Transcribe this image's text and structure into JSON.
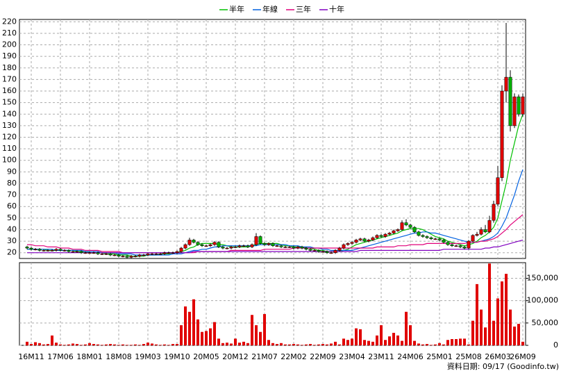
{
  "chart_data": {
    "type": "candlestick",
    "categories": [
      null,
      "16M11",
      null,
      null,
      null,
      null,
      null,
      null,
      "17M06",
      null,
      null,
      null,
      null,
      null,
      null,
      "18M01",
      null,
      null,
      null,
      null,
      null,
      null,
      "18M08",
      null,
      null,
      null,
      null,
      null,
      null,
      "19M03",
      null,
      null,
      null,
      null,
      null,
      null,
      "19M10",
      null,
      null,
      null,
      null,
      null,
      null,
      "20M05",
      null,
      null,
      null,
      null,
      null,
      null,
      "20M12",
      null,
      null,
      null,
      null,
      null,
      null,
      "21M07",
      null,
      null,
      null,
      null,
      null,
      null,
      "22M02",
      null,
      null,
      null,
      null,
      null,
      null,
      "22M09",
      null,
      null,
      null,
      null,
      null,
      null,
      "23M04",
      null,
      null,
      null,
      null,
      null,
      null,
      "23M11",
      null,
      null,
      null,
      null,
      null,
      null,
      "24M06",
      null,
      null,
      null,
      null,
      null,
      null,
      "25M01",
      null,
      null,
      null,
      null,
      null,
      null,
      "25M08",
      null,
      null,
      null,
      null,
      null,
      null,
      "26M03",
      null,
      null,
      null,
      null,
      null,
      "26M09"
    ],
    "open": [
      25,
      24,
      23,
      23,
      22,
      22,
      22,
      22,
      23,
      22,
      22,
      21,
      21,
      21,
      20,
      20,
      20,
      20,
      19,
      19,
      19,
      18,
      18,
      17,
      17,
      16,
      17,
      17,
      18,
      18,
      19,
      19,
      19,
      19,
      20,
      20,
      20,
      21,
      24,
      27,
      31,
      29,
      27,
      26,
      26,
      27,
      29,
      25,
      24,
      24,
      25,
      25,
      26,
      26,
      25,
      27,
      34,
      28,
      27,
      28,
      26,
      26,
      25,
      25,
      25,
      24,
      25,
      24,
      23,
      22,
      22,
      21,
      21,
      20,
      20,
      22,
      24,
      27,
      28,
      29,
      31,
      32,
      30,
      31,
      33,
      35,
      34,
      36,
      37,
      39,
      40,
      46,
      44,
      42,
      38,
      35,
      34,
      33,
      32,
      32,
      31,
      29,
      27,
      26,
      26,
      25,
      24,
      30,
      35,
      36,
      40,
      38,
      48,
      62,
      85,
      160,
      172,
      130,
      155,
      140
    ],
    "high": [
      26,
      25,
      24,
      24,
      23,
      23,
      23,
      24,
      24,
      23,
      23,
      22,
      22,
      22,
      21,
      21,
      21,
      21,
      20,
      20,
      20,
      19,
      19,
      18,
      18,
      18,
      18,
      19,
      19,
      20,
      20,
      20,
      20,
      21,
      21,
      21,
      22,
      25,
      28,
      33,
      32,
      30,
      28,
      27,
      28,
      30,
      30,
      26,
      25,
      26,
      26,
      27,
      27,
      27,
      28,
      37,
      35,
      29,
      29,
      29,
      27,
      27,
      26,
      26,
      26,
      26,
      26,
      25,
      24,
      23,
      23,
      22,
      22,
      21,
      23,
      25,
      28,
      29,
      30,
      32,
      33,
      33,
      32,
      34,
      36,
      36,
      37,
      38,
      40,
      41,
      48,
      49,
      45,
      43,
      39,
      36,
      35,
      34,
      33,
      33,
      32,
      30,
      28,
      27,
      27,
      26,
      31,
      36,
      38,
      42,
      44,
      52,
      65,
      95,
      165,
      219,
      178,
      158,
      157,
      158
    ],
    "low": [
      23,
      22,
      22,
      21,
      21,
      21,
      21,
      21,
      21,
      21,
      20,
      20,
      20,
      19,
      19,
      19,
      19,
      18,
      18,
      18,
      17,
      17,
      16,
      16,
      15,
      15,
      16,
      16,
      17,
      17,
      18,
      18,
      18,
      18,
      19,
      19,
      19,
      20,
      23,
      26,
      28,
      26,
      25,
      25,
      25,
      26,
      24,
      23,
      23,
      23,
      24,
      24,
      25,
      24,
      24,
      26,
      27,
      26,
      26,
      25,
      25,
      24,
      24,
      24,
      23,
      23,
      23,
      22,
      21,
      21,
      20,
      20,
      19,
      19,
      19,
      21,
      23,
      26,
      27,
      28,
      30,
      29,
      29,
      30,
      32,
      33,
      33,
      35,
      36,
      38,
      39,
      43,
      41,
      37,
      34,
      33,
      32,
      31,
      31,
      30,
      28,
      26,
      25,
      25,
      24,
      23,
      23,
      29,
      34,
      35,
      37,
      37,
      46,
      60,
      82,
      150,
      125,
      128,
      138,
      138
    ],
    "close": [
      24,
      23,
      23,
      22,
      22,
      22,
      22,
      23,
      22,
      22,
      21,
      21,
      21,
      20,
      20,
      20,
      20,
      19,
      19,
      19,
      18,
      18,
      17,
      17,
      16,
      17,
      17,
      18,
      18,
      19,
      19,
      19,
      19,
      20,
      20,
      20,
      21,
      24,
      27,
      31,
      29,
      27,
      26,
      26,
      27,
      29,
      25,
      24,
      24,
      25,
      25,
      26,
      26,
      25,
      27,
      34,
      28,
      27,
      28,
      26,
      26,
      25,
      25,
      25,
      24,
      25,
      24,
      23,
      22,
      22,
      21,
      21,
      20,
      20,
      22,
      24,
      27,
      28,
      29,
      31,
      32,
      30,
      31,
      33,
      35,
      34,
      36,
      37,
      39,
      40,
      46,
      44,
      42,
      38,
      35,
      34,
      33,
      32,
      32,
      31,
      29,
      27,
      26,
      26,
      25,
      24,
      30,
      35,
      36,
      40,
      38,
      48,
      62,
      85,
      160,
      172,
      130,
      155,
      140,
      155
    ],
    "up_color": "#e00000",
    "down_color": "#00b000",
    "series": [
      {
        "name": "半年",
        "color": "#00c000",
        "values": [
          23,
          23,
          23,
          23,
          23,
          22,
          22,
          22,
          22,
          22,
          22,
          22,
          21,
          21,
          21,
          20,
          20,
          20,
          20,
          19,
          19,
          19,
          18,
          18,
          18,
          17,
          17,
          17,
          17,
          18,
          18,
          18,
          19,
          19,
          19,
          20,
          20,
          21,
          22,
          24,
          25,
          27,
          28,
          28,
          28,
          28,
          27,
          27,
          26,
          25,
          25,
          25,
          25,
          25,
          26,
          27,
          28,
          28,
          28,
          28,
          28,
          27,
          26,
          26,
          25,
          25,
          25,
          24,
          24,
          23,
          22,
          22,
          21,
          21,
          21,
          21,
          22,
          23,
          25,
          27,
          28,
          29,
          30,
          31,
          32,
          33,
          34,
          35,
          36,
          37,
          39,
          40,
          41,
          41,
          41,
          40,
          38,
          36,
          34,
          33,
          32,
          30,
          29,
          28,
          27,
          26,
          27,
          28,
          30,
          33,
          35,
          38,
          42,
          50,
          65,
          80,
          100,
          115,
          130,
          140
        ]
      },
      {
        "name": "年線",
        "color": "#0060e0",
        "values": [
          23,
          23,
          23,
          23,
          23,
          23,
          23,
          22,
          22,
          22,
          22,
          22,
          22,
          22,
          21,
          21,
          21,
          21,
          20,
          20,
          20,
          20,
          19,
          19,
          19,
          19,
          18,
          18,
          18,
          18,
          18,
          18,
          18,
          18,
          18,
          19,
          19,
          19,
          20,
          21,
          22,
          22,
          23,
          23,
          24,
          25,
          25,
          26,
          26,
          26,
          26,
          26,
          26,
          26,
          26,
          26,
          27,
          27,
          27,
          27,
          27,
          27,
          27,
          26,
          26,
          26,
          25,
          25,
          25,
          24,
          24,
          23,
          23,
          22,
          22,
          22,
          22,
          22,
          22,
          23,
          24,
          25,
          26,
          27,
          28,
          29,
          30,
          31,
          32,
          33,
          34,
          35,
          36,
          37,
          37,
          38,
          38,
          37,
          37,
          36,
          35,
          34,
          33,
          32,
          31,
          30,
          29,
          29,
          29,
          30,
          31,
          32,
          34,
          37,
          43,
          50,
          60,
          70,
          82,
          92
        ]
      },
      {
        "name": "三年",
        "color": "#e0007a",
        "values": [
          27,
          27,
          26,
          26,
          26,
          25,
          25,
          25,
          24,
          24,
          24,
          23,
          23,
          23,
          22,
          22,
          22,
          22,
          21,
          21,
          21,
          21,
          21,
          20,
          20,
          20,
          20,
          20,
          20,
          20,
          20,
          20,
          20,
          20,
          20,
          20,
          20,
          20,
          20,
          20,
          20,
          21,
          21,
          21,
          21,
          21,
          21,
          21,
          21,
          22,
          22,
          22,
          22,
          22,
          22,
          22,
          22,
          23,
          23,
          23,
          23,
          23,
          23,
          23,
          24,
          24,
          24,
          24,
          24,
          24,
          24,
          24,
          24,
          24,
          24,
          24,
          24,
          24,
          24,
          24,
          24,
          24,
          24,
          24,
          25,
          25,
          25,
          25,
          25,
          26,
          26,
          26,
          27,
          27,
          27,
          27,
          28,
          28,
          28,
          28,
          28,
          28,
          28,
          28,
          28,
          28,
          29,
          29,
          29,
          30,
          30,
          31,
          32,
          34,
          37,
          40,
          44,
          47,
          50,
          53
        ]
      },
      {
        "name": "十年",
        "color": "#8000c0",
        "values": [
          20,
          20,
          20,
          20,
          20,
          20,
          20,
          20,
          20,
          20,
          20,
          20,
          20,
          20,
          20,
          20,
          20,
          20,
          20,
          20,
          20,
          20,
          20,
          20,
          20,
          20,
          20,
          20,
          20,
          20,
          20,
          20,
          20,
          20,
          20,
          20,
          20,
          20,
          20,
          20,
          21,
          21,
          21,
          21,
          21,
          21,
          21,
          21,
          21,
          21,
          21,
          21,
          21,
          21,
          21,
          21,
          21,
          21,
          21,
          21,
          21,
          21,
          21,
          21,
          21,
          21,
          21,
          21,
          21,
          21,
          21,
          21,
          21,
          21,
          21,
          21,
          21,
          21,
          21,
          21,
          22,
          22,
          22,
          22,
          22,
          22,
          22,
          22,
          22,
          22,
          22,
          22,
          22,
          22,
          22,
          22,
          22,
          22,
          22,
          22,
          23,
          23,
          23,
          23,
          23,
          23,
          23,
          23,
          23,
          23,
          24,
          24,
          25,
          25,
          26,
          27,
          28,
          29,
          30,
          31
        ]
      }
    ],
    "ylim": [
      15,
      222
    ],
    "yticks": [
      20,
      30,
      40,
      50,
      60,
      70,
      80,
      90,
      100,
      110,
      120,
      130,
      140,
      150,
      160,
      170,
      180,
      190,
      200,
      210,
      220
    ],
    "volume": [
      8000,
      3000,
      7000,
      5000,
      2000,
      3000,
      22000,
      6000,
      2000,
      1000,
      2000,
      4000,
      3000,
      1000,
      2000,
      5000,
      3000,
      2000,
      1000,
      2000,
      3000,
      2000,
      1000,
      2000,
      1000,
      1000,
      2000,
      1000,
      3000,
      6000,
      4000,
      2000,
      1000,
      2000,
      1000,
      3000,
      3000,
      45000,
      87000,
      75000,
      103000,
      58000,
      30000,
      32000,
      38000,
      52000,
      15000,
      5000,
      6000,
      4000,
      15000,
      6000,
      8000,
      5000,
      68000,
      45000,
      30000,
      70000,
      12000,
      5000,
      3000,
      5000,
      2000,
      2000,
      3000,
      2000,
      1000,
      2000,
      3000,
      1000,
      2000,
      3000,
      2000,
      4000,
      8000,
      2000,
      15000,
      12000,
      15000,
      38000,
      36000,
      12000,
      10000,
      8000,
      22000,
      45000,
      12000,
      20000,
      28000,
      22000,
      10000,
      75000,
      45000,
      10000,
      4000,
      2000,
      3000,
      1000,
      2000,
      5000,
      2000,
      12000,
      14000,
      14000,
      15000,
      15000,
      2000,
      55000,
      137000,
      80000,
      40000,
      183000,
      55000,
      105000,
      143000,
      160000,
      80000,
      42000,
      48000,
      8000
    ],
    "volume_color": "#e00000",
    "y2lim": [
      0,
      185000
    ],
    "y2ticks": [
      0,
      {
        "value": 50000,
        "label": "50,000"
      },
      {
        "value": 100000,
        "label": "100,000"
      },
      {
        "value": 150000,
        "label": "150,000"
      }
    ],
    "grid": true,
    "footer": "資料日期: 09/17 (Goodinfo.tw)"
  }
}
